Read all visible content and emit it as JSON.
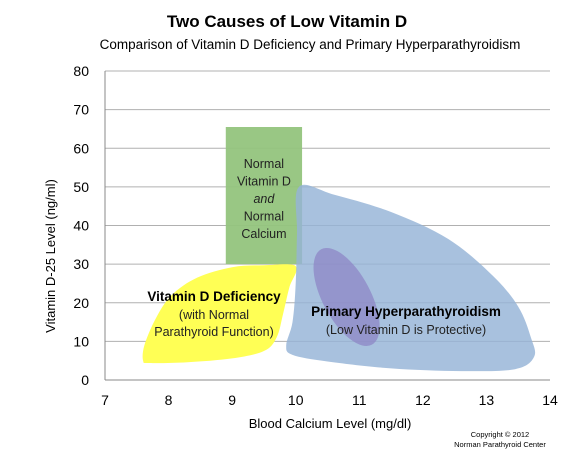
{
  "chart_data": {
    "type": "area",
    "title": "Two Causes of Low Vitamin D",
    "subtitle": "Comparison of Vitamin D Deficiency and Primary Hyperparathyroidism",
    "xlabel": "Blood Calcium Level   (mg/dl)",
    "ylabel": "Vitamin D-25 Level   (ng/ml)",
    "xlim": [
      7,
      14
    ],
    "ylim": [
      0,
      80
    ],
    "xticks": [
      "7",
      "8",
      "9",
      "10",
      "11",
      "12",
      "13",
      "14"
    ],
    "yticks": [
      "0",
      "10",
      "20",
      "30",
      "40",
      "50",
      "60",
      "70",
      "80"
    ],
    "grid": "horizontal",
    "regions": [
      {
        "id": "normal",
        "color": "#93c47d",
        "shape": "rect",
        "x": [
          8.9,
          10.1
        ],
        "y": [
          30,
          65.5
        ],
        "label_lines": [
          "Normal",
          "Vitamin D",
          "and",
          "Normal",
          "Calcium"
        ],
        "label_italic": [
          false,
          false,
          true,
          false,
          false
        ]
      },
      {
        "id": "deficiency",
        "color": "#ffff55",
        "shape": "blob",
        "points": [
          [
            7.6,
            5
          ],
          [
            7.62,
            9
          ],
          [
            7.8,
            16
          ],
          [
            8.05,
            22
          ],
          [
            8.45,
            26.5
          ],
          [
            9.0,
            29.2
          ],
          [
            9.5,
            29.7
          ],
          [
            10.0,
            29.5
          ],
          [
            9.9,
            24
          ],
          [
            9.8,
            17
          ],
          [
            9.7,
            11
          ],
          [
            9.5,
            7.5
          ],
          [
            9.0,
            5.6
          ],
          [
            8.3,
            4.6
          ],
          [
            7.7,
            4.4
          ]
        ],
        "title": "Vitamin D Deficiency",
        "label_lines": [
          "(with Normal",
          "Parathyroid Function)"
        ]
      },
      {
        "id": "hyperparathyroidism",
        "color": "#95b3d7",
        "shape": "blob",
        "points": [
          [
            10.05,
            50
          ],
          [
            10.6,
            48
          ],
          [
            11.5,
            43.5
          ],
          [
            12.4,
            36.5
          ],
          [
            13.1,
            27
          ],
          [
            13.5,
            19
          ],
          [
            13.7,
            11
          ],
          [
            13.75,
            6
          ],
          [
            13.45,
            2.8
          ],
          [
            12.6,
            2.3
          ],
          [
            11.5,
            3
          ],
          [
            10.5,
            4.8
          ],
          [
            9.95,
            6.5
          ],
          [
            9.85,
            9
          ],
          [
            9.95,
            15
          ],
          [
            10.0,
            25
          ],
          [
            10.02,
            38
          ]
        ],
        "title": "Primary Hyperparathyroidism",
        "label_lines": [
          "(Low Vitamin D is Protective)"
        ]
      },
      {
        "id": "overlap",
        "color": "#8e86c6",
        "shape": "ellipse",
        "center": [
          10.8,
          21.5
        ],
        "angle_deg": -62
      }
    ]
  },
  "copyright": [
    "Copyright © 2012",
    "Norman Parathyroid  Center"
  ]
}
